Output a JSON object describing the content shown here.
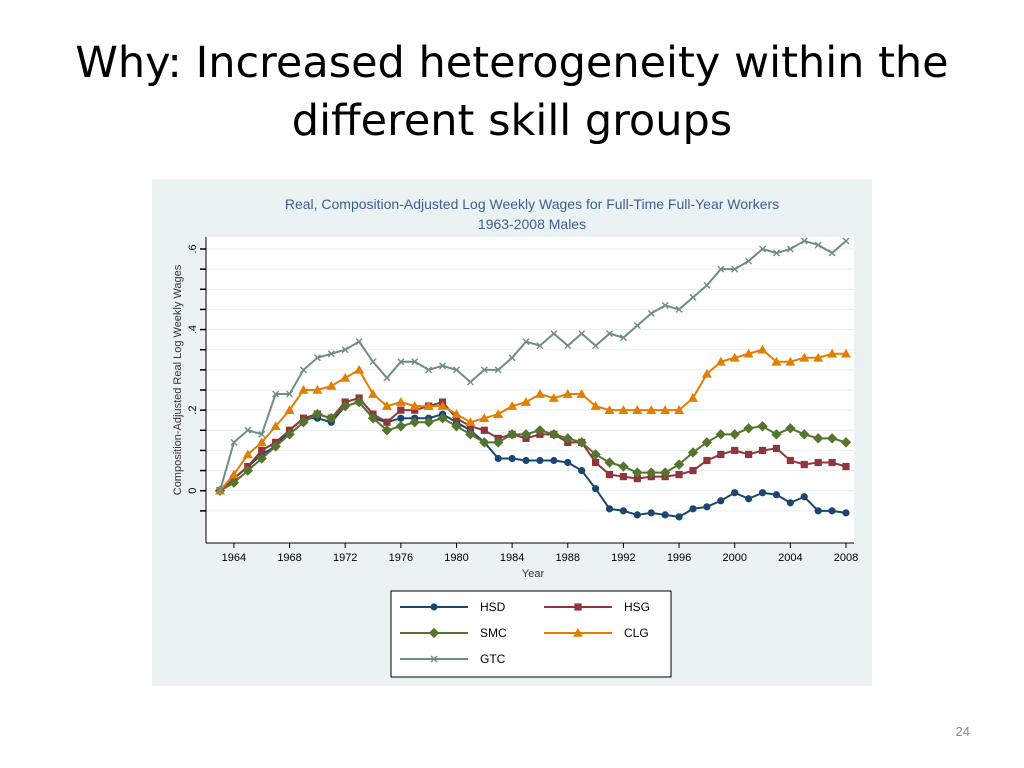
{
  "slide": {
    "title": "Why: Increased heterogeneity within the different skill groups",
    "page_number": "24"
  },
  "chart_data": {
    "type": "line",
    "title": "Real, Composition-Adjusted Log Weekly Wages for Full-Time Full-Year Workers",
    "subtitle": "1963-2008 Males",
    "xlabel": "Year",
    "ylabel": "Composition-Adjusted Real Log Weekly Wages",
    "xlim": [
      1963,
      2008
    ],
    "ylim": [
      -0.1,
      0.6
    ],
    "x_ticks": [
      1964,
      1968,
      1972,
      1976,
      1980,
      1984,
      1988,
      1992,
      1996,
      2000,
      2004,
      2008
    ],
    "y_ticks": [
      0,
      0.2,
      0.4,
      0.6
    ],
    "y_tick_labels": [
      "0",
      ".2",
      ".4",
      ".6"
    ],
    "grid": true,
    "legend_position": "bottom",
    "x": [
      1963,
      1964,
      1965,
      1966,
      1967,
      1968,
      1969,
      1970,
      1971,
      1972,
      1973,
      1974,
      1975,
      1976,
      1977,
      1978,
      1979,
      1980,
      1981,
      1982,
      1983,
      1984,
      1985,
      1986,
      1987,
      1988,
      1989,
      1990,
      1991,
      1992,
      1993,
      1994,
      1995,
      1996,
      1997,
      1998,
      1999,
      2000,
      2001,
      2002,
      2003,
      2004,
      2005,
      2006,
      2007,
      2008
    ],
    "series": [
      {
        "name": "HSD",
        "color": "#1a476f",
        "marker": "circle",
        "values": [
          0,
          0.03,
          0.06,
          0.09,
          0.11,
          0.15,
          0.18,
          0.18,
          0.17,
          0.21,
          0.22,
          0.18,
          0.17,
          0.18,
          0.18,
          0.18,
          0.19,
          0.17,
          0.15,
          0.12,
          0.08,
          0.08,
          0.075,
          0.075,
          0.075,
          0.07,
          0.05,
          0.005,
          -0.045,
          -0.05,
          -0.06,
          -0.055,
          -0.06,
          -0.065,
          -0.045,
          -0.04,
          -0.025,
          -0.005,
          -0.02,
          -0.005,
          -0.01,
          -0.03,
          -0.015,
          -0.05,
          -0.05,
          -0.055
        ]
      },
      {
        "name": "HSG",
        "color": "#90353b",
        "marker": "square",
        "values": [
          0,
          0.03,
          0.06,
          0.1,
          0.12,
          0.15,
          0.18,
          0.19,
          0.18,
          0.22,
          0.23,
          0.19,
          0.17,
          0.2,
          0.2,
          0.21,
          0.22,
          0.18,
          0.16,
          0.15,
          0.13,
          0.14,
          0.13,
          0.14,
          0.14,
          0.12,
          0.12,
          0.07,
          0.04,
          0.035,
          0.03,
          0.035,
          0.035,
          0.04,
          0.05,
          0.075,
          0.09,
          0.1,
          0.09,
          0.1,
          0.105,
          0.075,
          0.065,
          0.07,
          0.07,
          0.06
        ]
      },
      {
        "name": "SMC",
        "color": "#55752f",
        "marker": "diamond",
        "values": [
          0,
          0.02,
          0.05,
          0.08,
          0.11,
          0.14,
          0.17,
          0.19,
          0.18,
          0.21,
          0.22,
          0.18,
          0.15,
          0.16,
          0.17,
          0.17,
          0.18,
          0.16,
          0.14,
          0.12,
          0.12,
          0.14,
          0.14,
          0.15,
          0.14,
          0.13,
          0.12,
          0.09,
          0.07,
          0.06,
          0.045,
          0.045,
          0.045,
          0.065,
          0.095,
          0.12,
          0.14,
          0.14,
          0.155,
          0.16,
          0.14,
          0.155,
          0.14,
          0.13,
          0.13,
          0.12
        ]
      },
      {
        "name": "CLG",
        "color": "#e37e00",
        "marker": "triangle",
        "values": [
          0,
          0.04,
          0.09,
          0.12,
          0.16,
          0.2,
          0.25,
          0.25,
          0.26,
          0.28,
          0.3,
          0.24,
          0.21,
          0.22,
          0.21,
          0.21,
          0.21,
          0.19,
          0.17,
          0.18,
          0.19,
          0.21,
          0.22,
          0.24,
          0.23,
          0.24,
          0.24,
          0.21,
          0.2,
          0.2,
          0.2,
          0.2,
          0.2,
          0.2,
          0.23,
          0.29,
          0.32,
          0.33,
          0.34,
          0.35,
          0.32,
          0.32,
          0.33,
          0.33,
          0.34,
          0.34
        ]
      },
      {
        "name": "GTC",
        "color": "#6e8e84",
        "marker": "x",
        "values": [
          0,
          0.12,
          0.15,
          0.14,
          0.24,
          0.24,
          0.3,
          0.33,
          0.34,
          0.35,
          0.37,
          0.32,
          0.28,
          0.32,
          0.32,
          0.3,
          0.31,
          0.3,
          0.27,
          0.3,
          0.3,
          0.33,
          0.37,
          0.36,
          0.39,
          0.36,
          0.39,
          0.36,
          0.39,
          0.38,
          0.41,
          0.44,
          0.46,
          0.45,
          0.48,
          0.51,
          0.55,
          0.55,
          0.57,
          0.6,
          0.59,
          0.6,
          0.62,
          0.61,
          0.59,
          0.62
        ]
      }
    ]
  }
}
